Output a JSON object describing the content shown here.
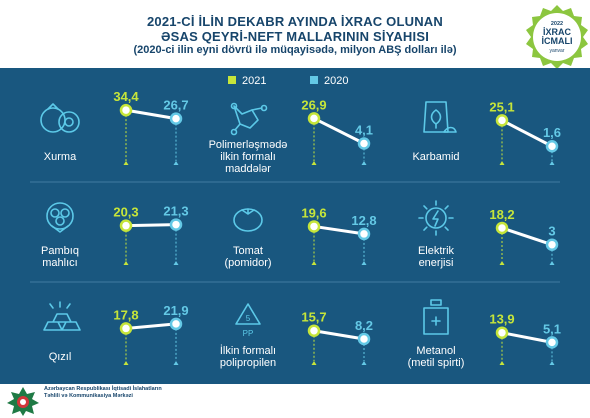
{
  "header": {
    "line1": "2021-Cİ İLİN DEKABR AYINDA İXRAC OLUNAN",
    "line2": "ƏSAS QEYRİ-NEFT MALLARININ SİYAHISI",
    "line3": "(2020-ci ilin eyni dövrü ilə müqayisədə, milyon ABŞ dolları ilə)"
  },
  "badge": {
    "year": "2022",
    "line1": "İXRAC",
    "line2": "İCMALI",
    "month": "yanvar"
  },
  "legend": {
    "series_2021": "2021",
    "series_2020": "2020"
  },
  "colors": {
    "series_2021": "#c6e53a",
    "series_2020": "#64c9e6",
    "panel": "#19577f",
    "title": "#17456b",
    "icon": "#5cc9e8"
  },
  "footer": {
    "line1": "Azərbaycan Respublikası İqtisadi İslahatların",
    "line2": "Təhlili və Kommunikasiya Mərkəzi"
  },
  "chart_data": {
    "type": "line",
    "series_names": [
      "2021",
      "2020"
    ],
    "unit": "milyon ABŞ dolları",
    "items": [
      {
        "label": [
          "Xurma"
        ],
        "icon": "persimmon-icon",
        "v2021": 34.4,
        "v2020": 26.7,
        "t2021": "34,4",
        "t2020": "26,7"
      },
      {
        "label": [
          "Polimerləşmədə",
          "ilkin formalı",
          "maddələr"
        ],
        "icon": "molecule-icon",
        "v2021": 26.9,
        "v2020": 4.1,
        "t2021": "26,9",
        "t2020": "4,1"
      },
      {
        "label": [
          "Karbamid"
        ],
        "icon": "fertilizer-bag-icon",
        "v2021": 25.1,
        "v2020": 1.6,
        "t2021": "25,1",
        "t2020": "1,6"
      },
      {
        "label": [
          "Pambıq",
          "mahlıcı"
        ],
        "icon": "cotton-icon",
        "v2021": 20.3,
        "v2020": 21.3,
        "t2021": "20,3",
        "t2020": "21,3"
      },
      {
        "label": [
          "Tomat",
          "(pomidor)"
        ],
        "icon": "tomato-icon",
        "v2021": 19.6,
        "v2020": 12.8,
        "t2021": "19,6",
        "t2020": "12,8"
      },
      {
        "label": [
          "Elektrik",
          "enerjisi"
        ],
        "icon": "lightning-icon",
        "v2021": 18.2,
        "v2020": 3,
        "t2021": "18,2",
        "t2020": "3"
      },
      {
        "label": [
          "Qızıl"
        ],
        "icon": "gold-bars-icon",
        "v2021": 17.8,
        "v2020": 21.9,
        "t2021": "17,8",
        "t2020": "21,9"
      },
      {
        "label": [
          "İlkin formalı",
          "polipropilen"
        ],
        "icon": "recycle-pp-icon",
        "v2021": 15.7,
        "v2020": 8.2,
        "t2021": "15,7",
        "t2020": "8,2"
      },
      {
        "label": [
          "Metanol",
          "(metil spirti)"
        ],
        "icon": "methanol-bottle-icon",
        "v2021": 13.9,
        "v2020": 5.1,
        "t2021": "13,9",
        "t2020": "5,1"
      }
    ]
  }
}
